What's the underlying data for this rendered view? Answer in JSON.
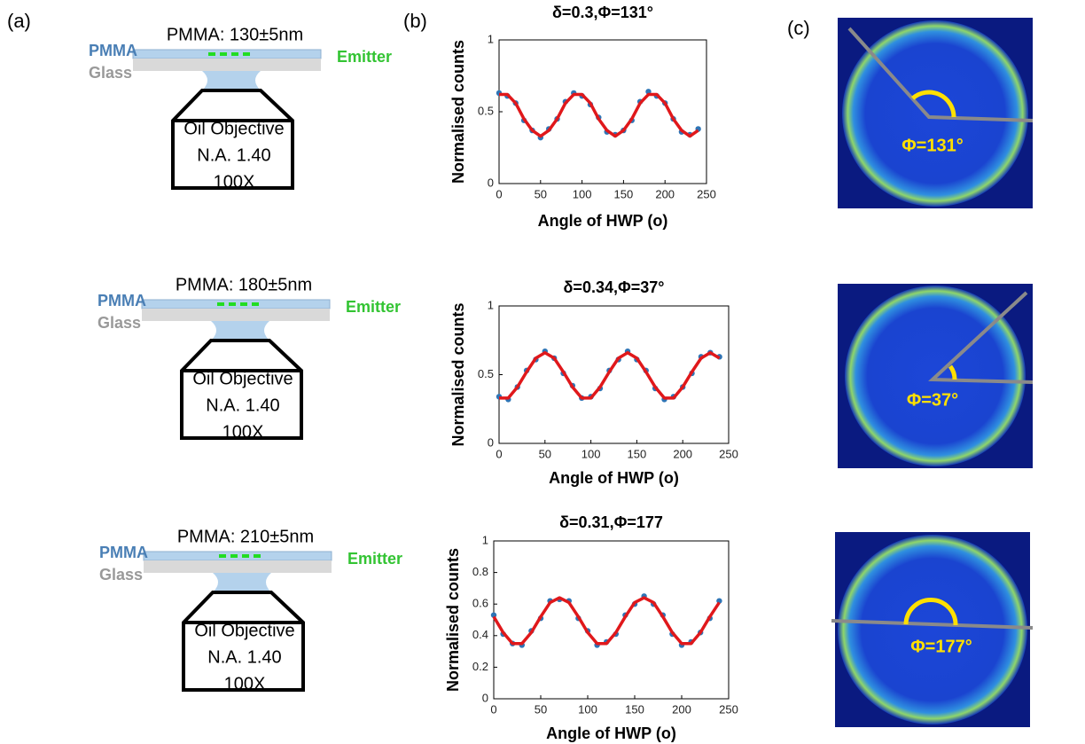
{
  "panels": [
    "(a)",
    "(b)",
    "(c)"
  ],
  "diagrams": [
    {
      "thickness": "PMMA: 130±5nm",
      "layer_top": "PMMA",
      "layer_bottom": "Glass",
      "emitter": "Emitter",
      "objective": [
        "Oil Objective",
        "N.A. 1.40",
        "100X"
      ]
    },
    {
      "thickness": "PMMA: 180±5nm",
      "layer_top": "PMMA",
      "layer_bottom": "Glass",
      "emitter": "Emitter",
      "objective": [
        "Oil Objective",
        "N.A. 1.40",
        "100X"
      ]
    },
    {
      "thickness": "PMMA: 210±5nm",
      "layer_top": "PMMA",
      "layer_bottom": "Glass",
      "emitter": "Emitter",
      "objective": [
        "Oil Objective",
        "N.A. 1.40",
        "100X"
      ]
    }
  ],
  "chart_data": [
    {
      "type": "line",
      "title": "δ=0.3,Φ=131°",
      "xlabel": "Angle of HWP (o)",
      "ylabel": "Normalised counts",
      "x": [
        0,
        10,
        20,
        30,
        40,
        50,
        60,
        70,
        80,
        90,
        100,
        110,
        120,
        130,
        140,
        150,
        160,
        170,
        180,
        190,
        200,
        210,
        220,
        230,
        240
      ],
      "xlim": [
        0,
        250
      ],
      "xticks": [
        0,
        50,
        100,
        150,
        200,
        250
      ],
      "ylim": [
        0,
        1
      ],
      "yticks": [
        0,
        0.5,
        1
      ],
      "series": [
        {
          "color": "#2e75b6",
          "mark": "points",
          "values": [
            0.63,
            0.61,
            0.56,
            0.44,
            0.37,
            0.32,
            0.38,
            0.45,
            0.57,
            0.63,
            0.61,
            0.55,
            0.46,
            0.36,
            0.34,
            0.37,
            0.44,
            0.57,
            0.64,
            0.61,
            0.56,
            0.45,
            0.36,
            0.34,
            0.38
          ]
        },
        {
          "color": "#e0181b",
          "mark": "line",
          "values": [
            0.62,
            0.62,
            0.56,
            0.45,
            0.37,
            0.33,
            0.37,
            0.45,
            0.56,
            0.62,
            0.62,
            0.56,
            0.45,
            0.37,
            0.33,
            0.37,
            0.45,
            0.56,
            0.62,
            0.62,
            0.56,
            0.45,
            0.37,
            0.33,
            0.37
          ]
        }
      ]
    },
    {
      "type": "line",
      "title": "δ=0.34,Φ=37°",
      "xlabel": "Angle of HWP (o)",
      "ylabel": "Normalised counts",
      "x": [
        0,
        10,
        20,
        30,
        40,
        50,
        60,
        70,
        80,
        90,
        100,
        110,
        120,
        130,
        140,
        150,
        160,
        170,
        180,
        190,
        200,
        210,
        220,
        230,
        240
      ],
      "xlim": [
        0,
        250
      ],
      "xticks": [
        0,
        50,
        100,
        150,
        200,
        250
      ],
      "ylim": [
        0,
        1
      ],
      "yticks": [
        0,
        0.5,
        1
      ],
      "series": [
        {
          "color": "#2e75b6",
          "mark": "points",
          "values": [
            0.34,
            0.32,
            0.41,
            0.53,
            0.61,
            0.67,
            0.62,
            0.51,
            0.42,
            0.33,
            0.34,
            0.4,
            0.53,
            0.61,
            0.67,
            0.61,
            0.53,
            0.4,
            0.32,
            0.34,
            0.41,
            0.51,
            0.63,
            0.66,
            0.63
          ]
        },
        {
          "color": "#e0181b",
          "mark": "line",
          "values": [
            0.33,
            0.33,
            0.41,
            0.52,
            0.62,
            0.66,
            0.62,
            0.52,
            0.41,
            0.33,
            0.33,
            0.41,
            0.52,
            0.62,
            0.66,
            0.62,
            0.52,
            0.41,
            0.33,
            0.33,
            0.41,
            0.52,
            0.62,
            0.66,
            0.62
          ]
        }
      ]
    },
    {
      "type": "line",
      "title": "δ=0.31,Φ=177",
      "xlabel": "Angle of HWP (o)",
      "ylabel": "Normalised counts",
      "x": [
        0,
        10,
        20,
        30,
        40,
        50,
        60,
        70,
        80,
        90,
        100,
        110,
        120,
        130,
        140,
        150,
        160,
        170,
        180,
        190,
        200,
        210,
        220,
        230,
        240
      ],
      "xlim": [
        0,
        250
      ],
      "xticks": [
        0,
        50,
        100,
        150,
        200,
        250
      ],
      "ylim": [
        0,
        1
      ],
      "yticks": [
        0,
        0.2,
        0.4,
        0.6,
        0.8,
        1
      ],
      "series": [
        {
          "color": "#2e75b6",
          "mark": "points",
          "values": [
            0.53,
            0.41,
            0.35,
            0.34,
            0.43,
            0.51,
            0.62,
            0.63,
            0.62,
            0.51,
            0.43,
            0.34,
            0.36,
            0.41,
            0.53,
            0.6,
            0.65,
            0.6,
            0.53,
            0.41,
            0.34,
            0.36,
            0.42,
            0.51,
            0.62
          ]
        },
        {
          "color": "#e0181b",
          "mark": "line",
          "values": [
            0.52,
            0.42,
            0.35,
            0.35,
            0.42,
            0.52,
            0.61,
            0.64,
            0.61,
            0.52,
            0.42,
            0.35,
            0.35,
            0.42,
            0.52,
            0.61,
            0.64,
            0.61,
            0.52,
            0.42,
            0.35,
            0.35,
            0.42,
            0.52,
            0.61
          ]
        }
      ]
    }
  ],
  "images": [
    {
      "label": "Φ=131°"
    },
    {
      "label": "Φ=37°"
    },
    {
      "label": "Φ=177°"
    }
  ]
}
